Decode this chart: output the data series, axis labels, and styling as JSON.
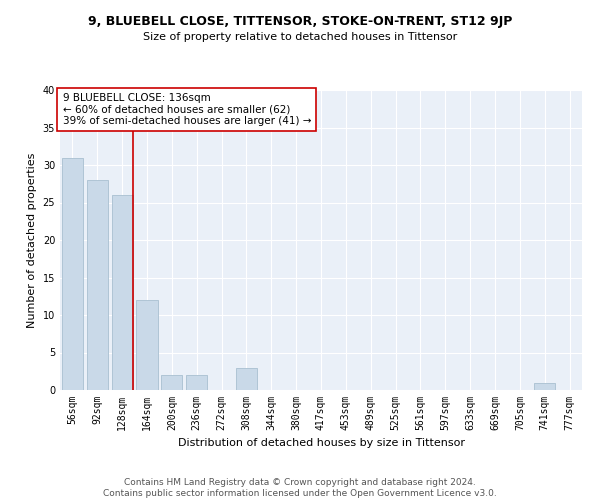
{
  "title": "9, BLUEBELL CLOSE, TITTENSOR, STOKE-ON-TRENT, ST12 9JP",
  "subtitle": "Size of property relative to detached houses in Tittensor",
  "xlabel": "Distribution of detached houses by size in Tittensor",
  "ylabel": "Number of detached properties",
  "categories": [
    "56sqm",
    "92sqm",
    "128sqm",
    "164sqm",
    "200sqm",
    "236sqm",
    "272sqm",
    "308sqm",
    "344sqm",
    "380sqm",
    "417sqm",
    "453sqm",
    "489sqm",
    "525sqm",
    "561sqm",
    "597sqm",
    "633sqm",
    "669sqm",
    "705sqm",
    "741sqm",
    "777sqm"
  ],
  "values": [
    31,
    28,
    26,
    12,
    2,
    2,
    0,
    3,
    0,
    0,
    0,
    0,
    0,
    0,
    0,
    0,
    0,
    0,
    0,
    1,
    0
  ],
  "bar_color": "#c9d9e8",
  "bar_edge_color": "#a8bfd0",
  "vline_color": "#cc0000",
  "annotation_text": "9 BLUEBELL CLOSE: 136sqm\n← 60% of detached houses are smaller (62)\n39% of semi-detached houses are larger (41) →",
  "annotation_box_color": "#ffffff",
  "annotation_box_edge_color": "#cc0000",
  "ylim": [
    0,
    40
  ],
  "yticks": [
    0,
    5,
    10,
    15,
    20,
    25,
    30,
    35,
    40
  ],
  "bg_color": "#eaf0f8",
  "footer_text": "Contains HM Land Registry data © Crown copyright and database right 2024.\nContains public sector information licensed under the Open Government Licence v3.0.",
  "title_fontsize": 9,
  "subtitle_fontsize": 8,
  "axis_label_fontsize": 8,
  "tick_fontsize": 7,
  "annotation_fontsize": 7.5,
  "footer_fontsize": 6.5
}
